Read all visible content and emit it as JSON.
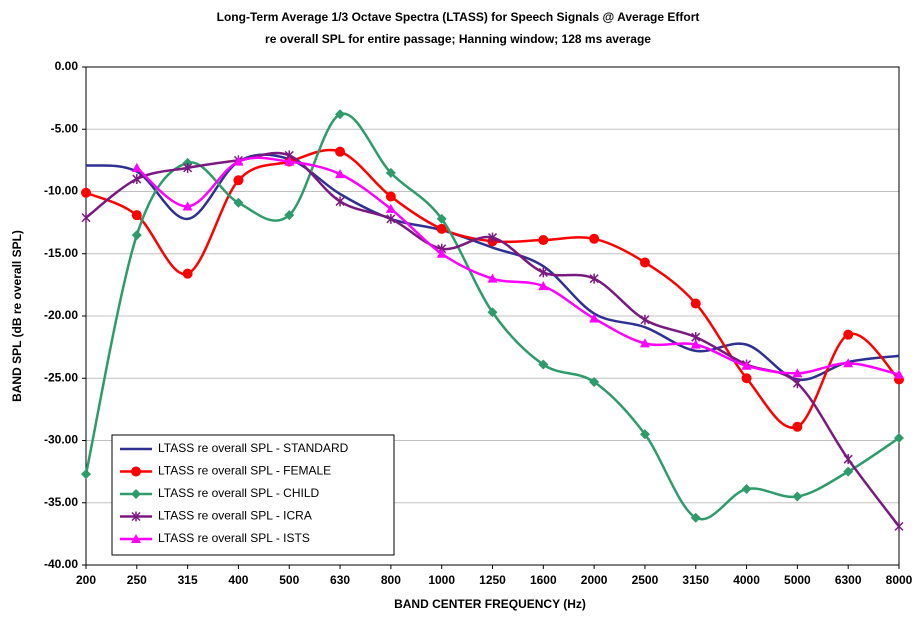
{
  "chart_data": {
    "type": "line",
    "title": "Long-Term Average 1/3 Octave Spectra (LTASS) for Speech Signals @ Average Effort",
    "subtitle": "re overall SPL for entire passage; Hanning window; 128 ms average",
    "x_label": "BAND CENTER FREQUENCY (Hz)",
    "y_label": "BAND SPL (dB re overall SPL)",
    "categories": [
      "200",
      "250",
      "315",
      "400",
      "500",
      "630",
      "800",
      "1000",
      "1250",
      "1600",
      "2000",
      "2500",
      "3150",
      "4000",
      "5000",
      "6300",
      "8000"
    ],
    "ylim": [
      -40,
      0
    ],
    "yticks": [
      {
        "value": -40,
        "label": "-40.00"
      },
      {
        "value": -35,
        "label": "-35.00"
      },
      {
        "value": -30,
        "label": "-30.00"
      },
      {
        "value": -25,
        "label": "-25.00"
      },
      {
        "value": -20,
        "label": "-20.00"
      },
      {
        "value": -15,
        "label": "-15.00"
      },
      {
        "value": -10,
        "label": "-10.00"
      },
      {
        "value": -5,
        "label": "-5.00"
      },
      {
        "value": 0,
        "label": "0.00"
      }
    ],
    "grid": true,
    "smooth": true,
    "legend": "lower left",
    "series": [
      {
        "name": "LTASS re overall SPL - STANDARD",
        "color": "#2e3192",
        "marker": "none",
        "values": [
          -7.9,
          -8.4,
          -12.2,
          -7.6,
          -7.4,
          -10.2,
          -12.2,
          -13.1,
          -14.5,
          -16.0,
          -19.8,
          -20.9,
          -22.8,
          -22.3,
          -25.1,
          -23.7,
          -23.2
        ]
      },
      {
        "name": "LTASS re overall SPL - FEMALE",
        "color": "#ff0000",
        "marker": "circle",
        "values": [
          -10.1,
          -11.9,
          -16.6,
          -9.1,
          -7.6,
          -6.8,
          -10.4,
          -13.0,
          -14.0,
          -13.9,
          -13.8,
          -15.7,
          -19.0,
          -25.0,
          -28.9,
          -21.5,
          -25.1
        ]
      },
      {
        "name": "LTASS re overall SPL - CHILD",
        "color": "#2e9b6b",
        "marker": "diamond",
        "values": [
          -32.7,
          -13.5,
          -7.7,
          -10.9,
          -11.9,
          -3.8,
          -8.5,
          -12.2,
          -19.7,
          -23.9,
          -25.3,
          -29.5,
          -36.2,
          -33.9,
          -34.5,
          -32.5,
          -29.8
        ]
      },
      {
        "name": "LTASS re overall SPL - ICRA",
        "color": "#7a1a80",
        "marker": "star",
        "values": [
          -12.1,
          -9.0,
          -8.1,
          -7.5,
          -7.1,
          -10.8,
          -12.2,
          -14.6,
          -13.7,
          -16.5,
          -17.0,
          -20.3,
          -21.7,
          -23.9,
          -25.4,
          -31.5,
          -36.9
        ]
      },
      {
        "name": "LTASS re overall SPL - ISTS",
        "color": "#ff00ff",
        "marker": "triangle",
        "values": [
          null,
          -8.1,
          -11.2,
          -7.6,
          -7.6,
          -8.6,
          -11.4,
          -15.0,
          -17.0,
          -17.6,
          -20.2,
          -22.2,
          -22.3,
          -24.0,
          -24.6,
          -23.8,
          -24.7
        ]
      }
    ]
  }
}
